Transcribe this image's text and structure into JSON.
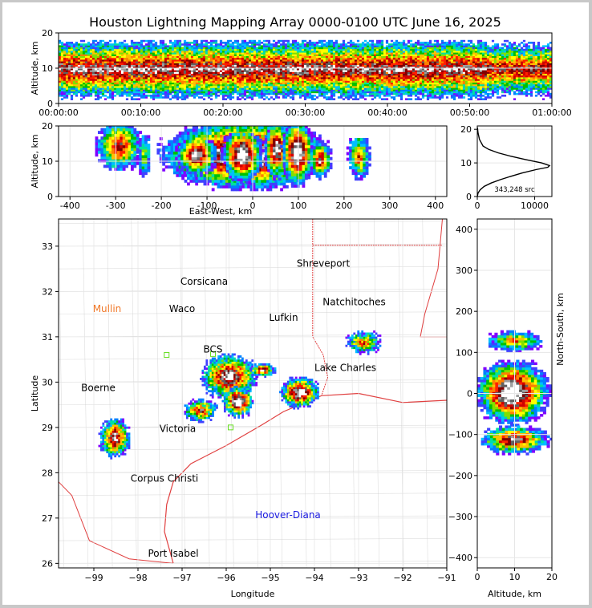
{
  "title": "Houston Lightning Mapping Array 0000-0100 UTC June 16, 2025",
  "colors": {
    "density_scale": [
      "#8000ff",
      "#4040ff",
      "#0080ff",
      "#00c0ff",
      "#00e0a0",
      "#00c000",
      "#80e000",
      "#ffff00",
      "#ffc000",
      "#ff8000",
      "#ff2000",
      "#d00000",
      "#800000",
      "#606060",
      "#a0a0a0",
      "#ffffff"
    ],
    "map_state_lines": "#c8c8c8",
    "coast": "#e04040",
    "grid": "#e6e6e6"
  },
  "chart_data": [
    {
      "id": "time_height",
      "type": "heatmap",
      "title": "Houston Lightning Mapping Array 0000-0100 UTC June 16, 2025",
      "ylabel": "Altitude, km",
      "xlabel": "",
      "xlim_minutes": [
        0,
        60
      ],
      "ylim": [
        0,
        20
      ],
      "y_ticks": [
        "0",
        "10",
        "20"
      ],
      "x_ticks": [
        "00:00:00",
        "00:10:00",
        "00:20:00",
        "00:30:00",
        "00:40:00",
        "00:50:00",
        "01:00:00"
      ],
      "x_tick_minutes": [
        0,
        10,
        20,
        30,
        40,
        50,
        60
      ],
      "grid": true,
      "density_core_km": [
        8,
        11
      ],
      "density_extent_km": [
        1,
        18
      ]
    },
    {
      "id": "ew_height",
      "type": "heatmap",
      "xlabel": "East-West, km",
      "ylabel": "Altitude, km",
      "xlim": [
        -425,
        425
      ],
      "ylim": [
        0,
        20
      ],
      "x_ticks": [
        "-400",
        "-300",
        "-200",
        "-100",
        "0",
        "100",
        "200",
        "300",
        "400"
      ],
      "x_tick_values": [
        -400,
        -300,
        -200,
        -100,
        0,
        100,
        200,
        300,
        400
      ],
      "y_ticks": [
        "0",
        "10",
        "20"
      ],
      "grid": true,
      "cells": [
        {
          "x": [
            -345,
            -245
          ],
          "z": [
            5,
            20
          ],
          "peak": 0.7
        },
        {
          "x": [
            -255,
            -225
          ],
          "z": [
            3,
            17
          ],
          "peak": 0.4
        },
        {
          "x": [
            -210,
            170
          ],
          "z": [
            0,
            20
          ],
          "peak": 1.0
        },
        {
          "x": [
            -170,
            -80
          ],
          "z": [
            4,
            16
          ],
          "peak": 0.85
        },
        {
          "x": [
            -70,
            20
          ],
          "z": [
            2,
            18
          ],
          "peak": 1.0
        },
        {
          "x": [
            20,
            80
          ],
          "z": [
            3,
            20
          ],
          "peak": 0.9
        },
        {
          "x": [
            60,
            130
          ],
          "z": [
            1,
            20
          ],
          "peak": 1.0
        },
        {
          "x": [
            120,
            170
          ],
          "z": [
            3,
            14
          ],
          "peak": 0.75
        },
        {
          "x": [
            205,
            255
          ],
          "z": [
            3,
            16
          ],
          "peak": 0.6
        }
      ]
    },
    {
      "id": "altitude_histogram",
      "type": "line",
      "annotation": "343,248 src",
      "xlim": [
        0,
        13000
      ],
      "ylim": [
        0,
        21
      ],
      "x_ticks": [
        "0",
        "10000"
      ],
      "x_tick_values": [
        0,
        10000
      ],
      "y_ticks": [
        "0",
        "10",
        "20"
      ],
      "x": [
        0,
        120,
        500,
        1200,
        2400,
        4000,
        5800,
        7800,
        10200,
        12300,
        12600,
        11200,
        8400,
        5800,
        3600,
        2000,
        1000,
        380,
        120,
        30
      ],
      "y": [
        0,
        1,
        2,
        3,
        4,
        5,
        6,
        7,
        8,
        8.7,
        9.2,
        10,
        11,
        12,
        13,
        14,
        15,
        17,
        19,
        20.5
      ],
      "grid": true
    },
    {
      "id": "plan_view",
      "type": "heatmap",
      "xlabel": "Longitude",
      "ylabel": "Latitude",
      "xlim": [
        -99.8,
        -91
      ],
      "ylim": [
        25.9,
        33.6
      ],
      "x_ticks": [
        "−99",
        "−98",
        "−97",
        "−96",
        "−95",
        "−94",
        "−93",
        "−92",
        "−91"
      ],
      "x_tick_values": [
        -99,
        -98,
        -97,
        -96,
        -95,
        -94,
        -93,
        -92,
        -91
      ],
      "y_ticks": [
        "26",
        "27",
        "28",
        "29",
        "30",
        "31",
        "32",
        "33"
      ],
      "y_tick_values": [
        26,
        27,
        28,
        29,
        30,
        31,
        32,
        33
      ],
      "grid": true,
      "labels": [
        {
          "text": "Shreveport",
          "lon": -93.8,
          "lat": 32.55,
          "color": "#000000"
        },
        {
          "text": "Corsicana",
          "lon": -96.5,
          "lat": 32.15,
          "color": "#000000"
        },
        {
          "text": "Natchitoches",
          "lon": -93.1,
          "lat": 31.7,
          "color": "#000000"
        },
        {
          "text": "Mullin",
          "lon": -98.7,
          "lat": 31.55,
          "color": "#f07828"
        },
        {
          "text": "Waco",
          "lon": -97.0,
          "lat": 31.55,
          "color": "#000000"
        },
        {
          "text": "Lufkin",
          "lon": -94.7,
          "lat": 31.35,
          "color": "#000000"
        },
        {
          "text": "BCS",
          "lon": -96.3,
          "lat": 30.65,
          "color": "#000000"
        },
        {
          "text": "Lake Charles",
          "lon": -93.3,
          "lat": 30.25,
          "color": "#000000"
        },
        {
          "text": "Boerne",
          "lon": -98.9,
          "lat": 29.8,
          "color": "#000000"
        },
        {
          "text": "Victoria",
          "lon": -97.1,
          "lat": 28.9,
          "color": "#000000"
        },
        {
          "text": "Corpus Christi",
          "lon": -97.4,
          "lat": 27.8,
          "color": "#000000"
        },
        {
          "text": "Hoover-Diana",
          "lon": -94.6,
          "lat": 27.0,
          "color": "#1a1ae0"
        },
        {
          "text": "Port Isabel",
          "lon": -97.2,
          "lat": 26.15,
          "color": "#000000"
        }
      ],
      "stations": [
        {
          "lon": -97.35,
          "lat": 30.6
        },
        {
          "lon": -96.3,
          "lat": 30.62
        },
        {
          "lon": -95.9,
          "lat": 29.0
        }
      ],
      "cells": [
        {
          "lon": [
            -96.6,
            -95.3
          ],
          "lat": [
            29.6,
            30.6
          ],
          "peak": 0.9
        },
        {
          "lon": [
            -96.1,
            -95.4
          ],
          "lat": [
            29.2,
            29.9
          ],
          "peak": 1.0
        },
        {
          "lon": [
            -97.0,
            -96.2
          ],
          "lat": [
            29.1,
            29.6
          ],
          "peak": 0.7
        },
        {
          "lon": [
            -95.5,
            -94.9
          ],
          "lat": [
            30.1,
            30.4
          ],
          "peak": 0.85
        },
        {
          "lon": [
            -94.8,
            -93.9
          ],
          "lat": [
            29.4,
            30.1
          ],
          "peak": 0.95
        },
        {
          "lon": [
            -98.9,
            -98.2
          ],
          "lat": [
            28.3,
            29.2
          ],
          "peak": 0.85
        },
        {
          "lon": [
            -93.3,
            -92.5
          ],
          "lat": [
            30.6,
            31.1
          ],
          "peak": 0.6
        }
      ]
    },
    {
      "id": "ns_height",
      "type": "heatmap",
      "xlabel": "Altitude, km",
      "ylabel": "North-South, km",
      "xlim": [
        0,
        20
      ],
      "ylim": [
        -425,
        425
      ],
      "x_ticks": [
        "0",
        "10",
        "20"
      ],
      "x_tick_values": [
        0,
        10,
        20
      ],
      "y_ticks": [
        "−400",
        "−300",
        "−200",
        "−100",
        "0",
        "100",
        "200",
        "300",
        "400"
      ],
      "y_tick_values": [
        -400,
        -300,
        -200,
        -100,
        0,
        100,
        200,
        300,
        400
      ],
      "grid": true,
      "cells": [
        {
          "ns": [
            100,
            150
          ],
          "z": [
            3,
            18
          ],
          "peak": 0.55
        },
        {
          "ns": [
            -80,
            80
          ],
          "z": [
            0,
            20
          ],
          "peak": 1.0
        },
        {
          "ns": [
            -150,
            -80
          ],
          "z": [
            1,
            20
          ],
          "peak": 0.8
        }
      ]
    }
  ]
}
